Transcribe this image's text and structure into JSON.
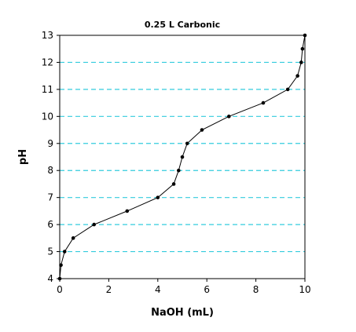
{
  "chart_data": {
    "type": "line",
    "title": "0.25 L Carbonic",
    "xlabel": "NaOH (mL)",
    "ylabel": "pH",
    "xlim": [
      0,
      10
    ],
    "ylim": [
      4,
      13
    ],
    "x_ticks": [
      "0",
      "2",
      "4",
      "6",
      "8",
      "10"
    ],
    "y_ticks": [
      "4",
      "5",
      "6",
      "7",
      "8",
      "9",
      "10",
      "11",
      "12",
      "13"
    ],
    "grid": "horizontal dashed",
    "grid_color": "#33ccdd",
    "line_color": "#000000",
    "series": [
      {
        "x": [
          0.0,
          0.05,
          0.2,
          0.55,
          1.4,
          2.75,
          4.0,
          4.65,
          4.85,
          5.0,
          5.2,
          5.8,
          6.9,
          8.3,
          9.3,
          9.7,
          9.85,
          9.9,
          10.0
        ],
        "y": [
          4.0,
          4.5,
          5.0,
          5.5,
          6.0,
          6.5,
          7.0,
          7.5,
          8.0,
          8.5,
          9.0,
          9.5,
          10.0,
          10.5,
          11.0,
          11.5,
          12.0,
          12.5,
          13.0
        ]
      }
    ]
  }
}
